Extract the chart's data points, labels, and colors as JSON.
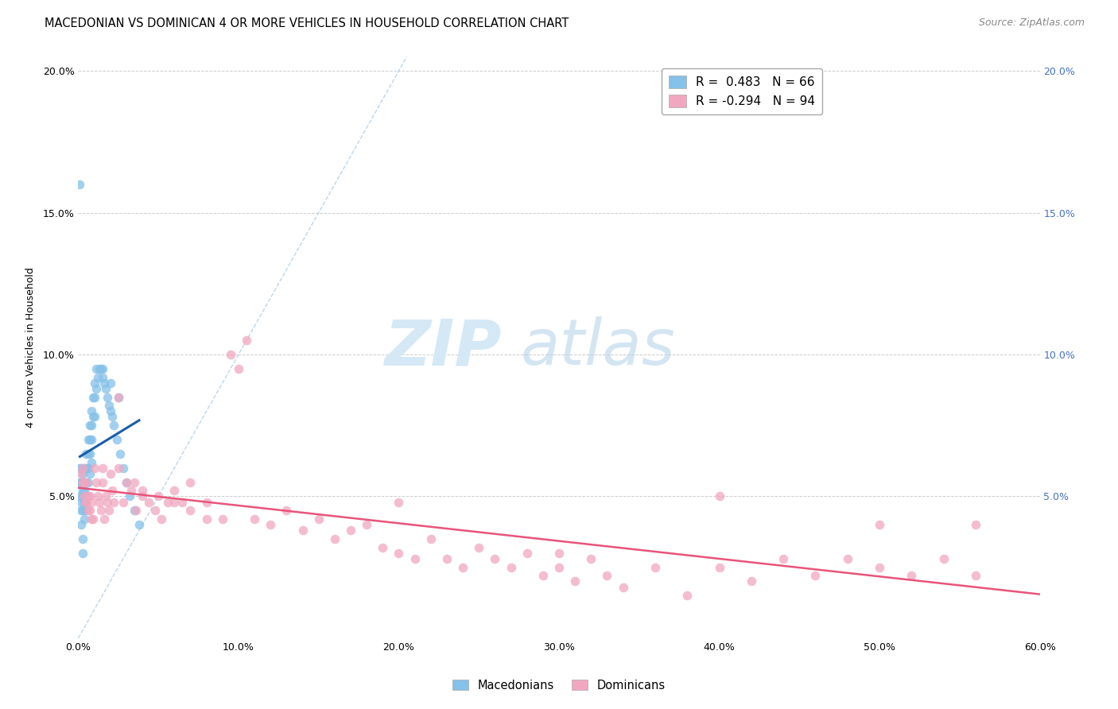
{
  "title": "MACEDONIAN VS DOMINICAN 4 OR MORE VEHICLES IN HOUSEHOLD CORRELATION CHART",
  "source": "Source: ZipAtlas.com",
  "ylabel": "4 or more Vehicles in Household",
  "xlim": [
    0.0,
    0.6
  ],
  "ylim": [
    0.0,
    0.205
  ],
  "xtick_vals": [
    0.0,
    0.1,
    0.2,
    0.3,
    0.4,
    0.5,
    0.6
  ],
  "xtick_labels": [
    "0.0%",
    "10.0%",
    "20.0%",
    "30.0%",
    "40.0%",
    "50.0%",
    "60.0%"
  ],
  "ytick_vals": [
    0.0,
    0.05,
    0.1,
    0.15,
    0.2
  ],
  "ytick_labels_left": [
    "",
    "5.0%",
    "10.0%",
    "15.0%",
    "20.0%"
  ],
  "ytick_labels_right": [
    "",
    "5.0%",
    "10.0%",
    "15.0%",
    "20.0%"
  ],
  "macedonian_R": 0.483,
  "macedonian_N": 66,
  "dominican_R": -0.294,
  "dominican_N": 94,
  "macedonian_color": "#85C1E9",
  "dominican_color": "#F1A7C0",
  "macedonian_line_color": "#1A5EA8",
  "dominican_line_color": "#E8547A",
  "diagonal_line_color": "#AACDE8",
  "background_color": "#FFFFFF",
  "grid_color": "#CCCCCC",
  "macedonian_x": [
    0.001,
    0.001,
    0.001,
    0.002,
    0.002,
    0.002,
    0.002,
    0.002,
    0.003,
    0.003,
    0.003,
    0.003,
    0.003,
    0.004,
    0.004,
    0.004,
    0.004,
    0.004,
    0.005,
    0.005,
    0.005,
    0.005,
    0.005,
    0.006,
    0.006,
    0.006,
    0.006,
    0.007,
    0.007,
    0.007,
    0.007,
    0.008,
    0.008,
    0.008,
    0.008,
    0.009,
    0.009,
    0.01,
    0.01,
    0.01,
    0.011,
    0.011,
    0.012,
    0.013,
    0.014,
    0.015,
    0.016,
    0.017,
    0.018,
    0.019,
    0.02,
    0.021,
    0.022,
    0.024,
    0.026,
    0.028,
    0.03,
    0.032,
    0.035,
    0.038,
    0.001,
    0.015,
    0.02,
    0.025,
    0.003,
    0.003
  ],
  "macedonian_y": [
    0.06,
    0.055,
    0.05,
    0.06,
    0.055,
    0.048,
    0.045,
    0.04,
    0.058,
    0.055,
    0.052,
    0.05,
    0.045,
    0.06,
    0.055,
    0.052,
    0.048,
    0.042,
    0.065,
    0.06,
    0.055,
    0.05,
    0.045,
    0.07,
    0.065,
    0.06,
    0.055,
    0.075,
    0.07,
    0.065,
    0.058,
    0.08,
    0.075,
    0.07,
    0.062,
    0.085,
    0.078,
    0.09,
    0.085,
    0.078,
    0.095,
    0.088,
    0.092,
    0.095,
    0.095,
    0.092,
    0.09,
    0.088,
    0.085,
    0.082,
    0.08,
    0.078,
    0.075,
    0.07,
    0.065,
    0.06,
    0.055,
    0.05,
    0.045,
    0.04,
    0.16,
    0.095,
    0.09,
    0.085,
    0.035,
    0.03
  ],
  "dominican_x": [
    0.002,
    0.003,
    0.003,
    0.004,
    0.004,
    0.005,
    0.005,
    0.006,
    0.006,
    0.007,
    0.007,
    0.008,
    0.008,
    0.009,
    0.01,
    0.011,
    0.012,
    0.013,
    0.014,
    0.015,
    0.016,
    0.017,
    0.018,
    0.019,
    0.02,
    0.021,
    0.022,
    0.025,
    0.028,
    0.03,
    0.033,
    0.036,
    0.04,
    0.044,
    0.048,
    0.052,
    0.056,
    0.06,
    0.065,
    0.07,
    0.08,
    0.09,
    0.1,
    0.11,
    0.12,
    0.13,
    0.14,
    0.15,
    0.16,
    0.17,
    0.18,
    0.19,
    0.2,
    0.21,
    0.22,
    0.23,
    0.24,
    0.25,
    0.26,
    0.27,
    0.28,
    0.29,
    0.3,
    0.31,
    0.32,
    0.33,
    0.34,
    0.36,
    0.38,
    0.4,
    0.42,
    0.44,
    0.46,
    0.48,
    0.5,
    0.52,
    0.54,
    0.56,
    0.005,
    0.015,
    0.025,
    0.035,
    0.04,
    0.05,
    0.06,
    0.07,
    0.08,
    0.095,
    0.105,
    0.2,
    0.3,
    0.4,
    0.5,
    0.56
  ],
  "dominican_y": [
    0.058,
    0.06,
    0.055,
    0.055,
    0.05,
    0.055,
    0.048,
    0.05,
    0.045,
    0.05,
    0.045,
    0.048,
    0.042,
    0.042,
    0.06,
    0.055,
    0.05,
    0.048,
    0.045,
    0.055,
    0.042,
    0.05,
    0.048,
    0.045,
    0.058,
    0.052,
    0.048,
    0.06,
    0.048,
    0.055,
    0.052,
    0.045,
    0.05,
    0.048,
    0.045,
    0.042,
    0.048,
    0.052,
    0.048,
    0.045,
    0.042,
    0.042,
    0.095,
    0.042,
    0.04,
    0.045,
    0.038,
    0.042,
    0.035,
    0.038,
    0.04,
    0.032,
    0.03,
    0.028,
    0.035,
    0.028,
    0.025,
    0.032,
    0.028,
    0.025,
    0.03,
    0.022,
    0.025,
    0.02,
    0.028,
    0.022,
    0.018,
    0.025,
    0.015,
    0.025,
    0.02,
    0.028,
    0.022,
    0.028,
    0.025,
    0.022,
    0.028,
    0.022,
    0.048,
    0.06,
    0.085,
    0.055,
    0.052,
    0.05,
    0.048,
    0.055,
    0.048,
    0.1,
    0.105,
    0.048,
    0.03,
    0.05,
    0.04,
    0.04
  ],
  "title_fontsize": 10.5,
  "source_fontsize": 9,
  "axis_label_fontsize": 9,
  "tick_fontsize": 9,
  "legend_fontsize": 11
}
